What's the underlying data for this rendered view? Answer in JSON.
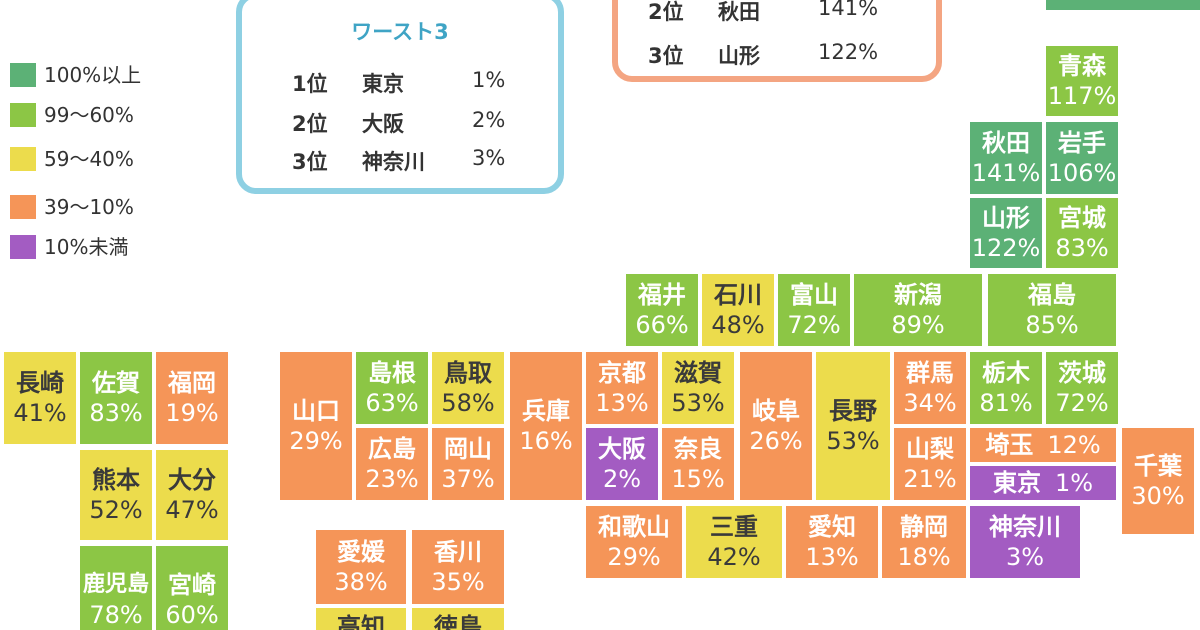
{
  "colors": {
    "green_dark": "#5cb176",
    "green_light": "#8cc645",
    "yellow": "#ecdc4c",
    "orange": "#f59558",
    "purple": "#a35cc2",
    "worst_border": "#8ed0e3",
    "best_border": "#f4a582"
  },
  "legend": [
    {
      "label": "100%以上",
      "color": "#5cb176"
    },
    {
      "label": "99〜60%",
      "color": "#8cc645"
    },
    {
      "label": "59〜40%",
      "color": "#ecdc4c"
    },
    {
      "label": "39〜10%",
      "color": "#f59558"
    },
    {
      "label": "10%未満",
      "color": "#a35cc2"
    }
  ],
  "worst": {
    "title": "ワースト3",
    "rows": [
      {
        "rank": "1位",
        "name": "東京",
        "value": "1%"
      },
      {
        "rank": "2位",
        "name": "大阪",
        "value": "2%"
      },
      {
        "rank": "3位",
        "name": "神奈川",
        "value": "3%"
      }
    ]
  },
  "best": {
    "rows": [
      {
        "rank": "2位",
        "name": "秋田",
        "value": "141%"
      },
      {
        "rank": "3位",
        "name": "山形",
        "value": "122%"
      }
    ]
  },
  "prefectures": {
    "aomori": {
      "name": "青森",
      "value": "117%"
    },
    "akita": {
      "name": "秋田",
      "value": "141%"
    },
    "iwate": {
      "name": "岩手",
      "value": "106%"
    },
    "yamagata": {
      "name": "山形",
      "value": "122%"
    },
    "miyagi": {
      "name": "宮城",
      "value": "83%"
    },
    "fukui": {
      "name": "福井",
      "value": "66%"
    },
    "ishikawa": {
      "name": "石川",
      "value": "48%"
    },
    "toyama": {
      "name": "富山",
      "value": "72%"
    },
    "niigata": {
      "name": "新潟",
      "value": "89%"
    },
    "fukushima": {
      "name": "福島",
      "value": "85%"
    },
    "nagasaki": {
      "name": "長崎",
      "value": "41%"
    },
    "saga": {
      "name": "佐賀",
      "value": "83%"
    },
    "fukuoka": {
      "name": "福岡",
      "value": "19%"
    },
    "yamaguchi": {
      "name": "山口",
      "value": "29%"
    },
    "shimane": {
      "name": "島根",
      "value": "63%"
    },
    "tottori": {
      "name": "鳥取",
      "value": "58%"
    },
    "hyogo": {
      "name": "兵庫",
      "value": "16%"
    },
    "kyoto": {
      "name": "京都",
      "value": "13%"
    },
    "shiga": {
      "name": "滋賀",
      "value": "53%"
    },
    "gifu": {
      "name": "岐阜",
      "value": "26%"
    },
    "nagano": {
      "name": "長野",
      "value": "53%"
    },
    "gunma": {
      "name": "群馬",
      "value": "34%"
    },
    "tochigi": {
      "name": "栃木",
      "value": "81%"
    },
    "ibaraki": {
      "name": "茨城",
      "value": "72%"
    },
    "hiroshima": {
      "name": "広島",
      "value": "23%"
    },
    "okayama": {
      "name": "岡山",
      "value": "37%"
    },
    "osaka": {
      "name": "大阪",
      "value": "2%"
    },
    "nara": {
      "name": "奈良",
      "value": "15%"
    },
    "yamanashi": {
      "name": "山梨",
      "value": "21%"
    },
    "saitama": {
      "name": "埼玉",
      "value": "12%"
    },
    "tokyo": {
      "name": "東京",
      "value": "1%"
    },
    "chiba": {
      "name": "千葉",
      "value": "30%"
    },
    "kumamoto": {
      "name": "熊本",
      "value": "52%"
    },
    "oita": {
      "name": "大分",
      "value": "47%"
    },
    "wakayama": {
      "name": "和歌山",
      "value": "29%"
    },
    "mie": {
      "name": "三重",
      "value": "42%"
    },
    "aichi": {
      "name": "愛知",
      "value": "13%"
    },
    "shizuoka": {
      "name": "静岡",
      "value": "18%"
    },
    "kanagawa": {
      "name": "神奈川",
      "value": "3%"
    },
    "ehime": {
      "name": "愛媛",
      "value": "38%"
    },
    "kagawa": {
      "name": "香川",
      "value": "35%"
    },
    "kagoshima": {
      "name": "鹿児島",
      "value": "78%"
    },
    "miyazaki": {
      "name": "宮崎",
      "value": "60%"
    },
    "kochi": {
      "name": "高知",
      "value": ""
    },
    "tokushima": {
      "name": "徳島",
      "value": ""
    }
  }
}
